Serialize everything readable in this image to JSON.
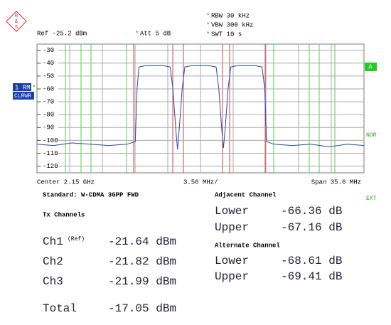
{
  "header": {
    "logo": [
      "R",
      "&",
      "S"
    ],
    "star": "*",
    "ref": "Ref -25.2 dBm",
    "att": "Att  5 dB",
    "rbw": "RBW 30 kHz",
    "vbw": "VBW 300 kHz",
    "swt": "SWT 10 s"
  },
  "side": {
    "trace": "1 RM",
    "mode": "CLRWR",
    "a": "A",
    "nor": "NOR",
    "ext": "EXT"
  },
  "chart_data": {
    "type": "line",
    "x": [
      2132.2,
      2134,
      2136,
      2138,
      2140,
      2142,
      2142.9,
      2143.1,
      2143.3,
      2144,
      2145,
      2146,
      2146.7,
      2147.0,
      2147.3,
      2147.5,
      2147.7,
      2148.0,
      2148.3,
      2149,
      2150,
      2151,
      2151.7,
      2152.0,
      2152.3,
      2152.5,
      2152.7,
      2153.0,
      2153.3,
      2154,
      2155,
      2156,
      2156.7,
      2157.0,
      2157.2,
      2158,
      2160,
      2162,
      2164,
      2166,
      2167.8
    ],
    "series": [
      {
        "color": "#3344aa",
        "values": [
          -103,
          -104,
          -102,
          -103,
          -104,
          -103,
          -101,
          -60,
          -43,
          -42,
          -42,
          -42,
          -43,
          -60,
          -90,
          -107,
          -90,
          -60,
          -43,
          -42,
          -42,
          -42,
          -43,
          -60,
          -90,
          -106,
          -90,
          -60,
          -43,
          -42,
          -42,
          -42,
          -43,
          -60,
          -101,
          -103,
          -104,
          -103,
          -105,
          -103,
          -104
        ]
      }
    ],
    "xlim": [
      2132.2,
      2167.8
    ],
    "ylim": [
      -125.2,
      -25.2
    ],
    "yticks": [
      -30,
      -40,
      -50,
      -60,
      -70,
      -80,
      -90,
      -100,
      -110,
      -120
    ],
    "x_labels": {
      "center": "Center  2.15 GHz",
      "div": "3.56 MHz/",
      "span": "Span 35.6 MHz"
    }
  },
  "readout": {
    "standard": "Standard: W-CDMA 3GPP FWD",
    "tx_title": "Tx Channels",
    "tx": [
      {
        "name": "Ch1",
        "note": "(Ref)",
        "value": "-21.64 dBm"
      },
      {
        "name": "Ch2",
        "value": "-21.82 dBm"
      },
      {
        "name": "Ch3",
        "value": "-21.99 dBm"
      }
    ],
    "total": {
      "name": "Total",
      "value": "-17.05 dBm"
    },
    "adjacent": {
      "title": "Adjacent Channel",
      "rows": [
        {
          "name": "Lower",
          "value": "-66.36 dB"
        },
        {
          "name": "Upper",
          "value": "-67.16 dB"
        }
      ]
    },
    "alternate": {
      "title": "Alternate Channel",
      "rows": [
        {
          "name": "Lower",
          "value": "-68.61 dB"
        },
        {
          "name": "Upper",
          "value": "-69.41 dB"
        }
      ]
    }
  }
}
